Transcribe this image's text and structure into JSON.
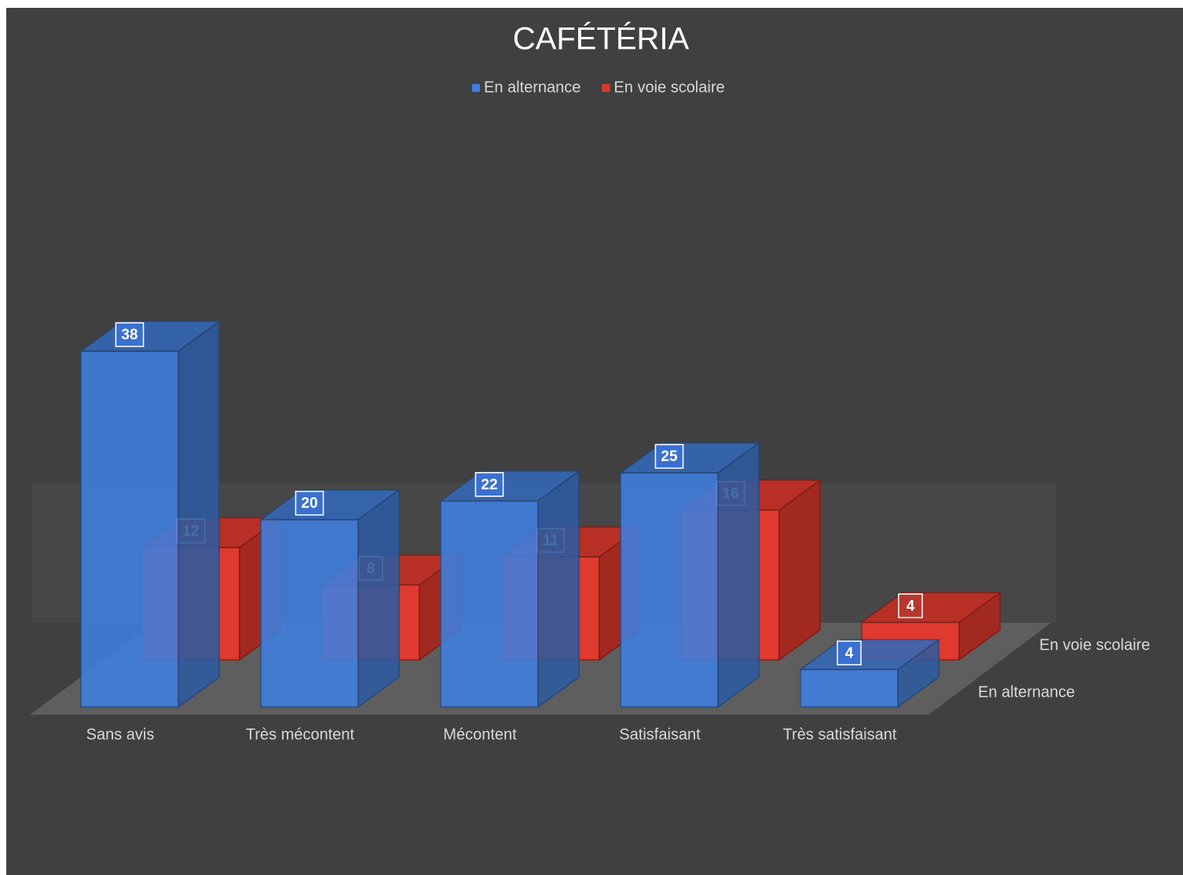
{
  "chart_data": {
    "type": "bar3d",
    "title": "CAFÉTÉRIA",
    "categories": [
      "Sans avis",
      "Très mécontent",
      "Mécontent",
      "Satisfaisant",
      "Très satisfaisant"
    ],
    "series": [
      {
        "name": "En alternance",
        "color": "#3f7fe0",
        "values": [
          38,
          20,
          22,
          25,
          4
        ]
      },
      {
        "name": "En voie scolaire",
        "color": "#e0392d",
        "values": [
          12,
          8,
          11,
          16,
          4
        ]
      }
    ],
    "legend": "top"
  }
}
